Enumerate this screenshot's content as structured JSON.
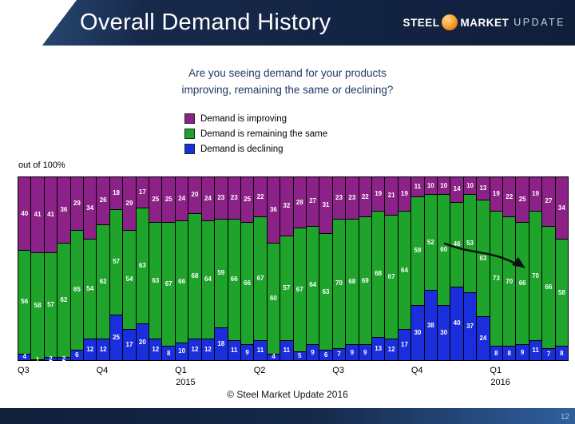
{
  "slide": {
    "title": "Overall Demand History",
    "footer": "© Steel Market Update 2016",
    "slide_number": "12",
    "header_color": "#17294b",
    "background_color": "#ffffff"
  },
  "logo": {
    "steel": "STEEL",
    "market": "MARKET",
    "update": "UPDATE",
    "globe_color": "#f7a22b"
  },
  "question": {
    "line1": "Are you seeing demand for your products",
    "line2": "improving, remaining the same or declining?"
  },
  "axis_note": "out of 100%",
  "annotation": {
    "type": "hand-drawn-arrow",
    "meaning": "downward trend in improving share at far right of chart"
  },
  "chart_data": {
    "type": "bar",
    "subtype": "100-percent-stacked",
    "title": "Overall Demand History",
    "ylabel": "out of 100%",
    "ylim": [
      0,
      100
    ],
    "grid": false,
    "legend_position": "top-center",
    "series": [
      {
        "name": "Demand is improving",
        "key": "improving",
        "color": "#8c2287"
      },
      {
        "name": "Demand is remaining the same",
        "key": "same",
        "color": "#1ea32b"
      },
      {
        "name": "Demand is declining",
        "key": "declining",
        "color": "#1b2edc"
      }
    ],
    "stack_order_top_to_bottom": [
      "improving",
      "same",
      "declining"
    ],
    "quarter_ticks": [
      {
        "label": "Q3",
        "year": "",
        "bar_index": 0
      },
      {
        "label": "Q4",
        "year": "",
        "bar_index": 6
      },
      {
        "label": "Q1",
        "year": "2015",
        "bar_index": 12
      },
      {
        "label": "Q2",
        "year": "",
        "bar_index": 18
      },
      {
        "label": "Q3",
        "year": "",
        "bar_index": 24
      },
      {
        "label": "Q4",
        "year": "",
        "bar_index": 30
      },
      {
        "label": "Q1",
        "year": "2016",
        "bar_index": 36
      }
    ],
    "bars": [
      {
        "improving": 40,
        "same": 56,
        "declining": 4
      },
      {
        "improving": 41,
        "same": 58,
        "declining": 1
      },
      {
        "improving": 41,
        "same": 57,
        "declining": 2
      },
      {
        "improving": 36,
        "same": 62,
        "declining": 2
      },
      {
        "improving": 29,
        "same": 65,
        "declining": 6
      },
      {
        "improving": 34,
        "same": 54,
        "declining": 12
      },
      {
        "improving": 26,
        "same": 62,
        "declining": 12
      },
      {
        "improving": 18,
        "same": 57,
        "declining": 25
      },
      {
        "improving": 29,
        "same": 54,
        "declining": 17
      },
      {
        "improving": 17,
        "same": 63,
        "declining": 20
      },
      {
        "improving": 25,
        "same": 63,
        "declining": 12
      },
      {
        "improving": 25,
        "same": 67,
        "declining": 8
      },
      {
        "improving": 24,
        "same": 66,
        "declining": 10
      },
      {
        "improving": 20,
        "same": 68,
        "declining": 12
      },
      {
        "improving": 24,
        "same": 64,
        "declining": 12
      },
      {
        "improving": 23,
        "same": 59,
        "declining": 18
      },
      {
        "improving": 23,
        "same": 66,
        "declining": 11
      },
      {
        "improving": 25,
        "same": 66,
        "declining": 9
      },
      {
        "improving": 22,
        "same": 67,
        "declining": 11
      },
      {
        "improving": 36,
        "same": 60,
        "declining": 4
      },
      {
        "improving": 32,
        "same": 57,
        "declining": 11
      },
      {
        "improving": 28,
        "same": 67,
        "declining": 5
      },
      {
        "improving": 27,
        "same": 64,
        "declining": 9
      },
      {
        "improving": 31,
        "same": 63,
        "declining": 6
      },
      {
        "improving": 23,
        "same": 70,
        "declining": 7
      },
      {
        "improving": 23,
        "same": 68,
        "declining": 9
      },
      {
        "improving": 22,
        "same": 69,
        "declining": 9
      },
      {
        "improving": 19,
        "same": 68,
        "declining": 13
      },
      {
        "improving": 21,
        "same": 67,
        "declining": 12
      },
      {
        "improving": 19,
        "same": 64,
        "declining": 17
      },
      {
        "improving": 11,
        "same": 59,
        "declining": 30
      },
      {
        "improving": 10,
        "same": 52,
        "declining": 38
      },
      {
        "improving": 10,
        "same": 60,
        "declining": 30
      },
      {
        "improving": 14,
        "same": 46,
        "declining": 40
      },
      {
        "improving": 10,
        "same": 53,
        "declining": 37
      },
      {
        "improving": 13,
        "same": 63,
        "declining": 24
      },
      {
        "improving": 19,
        "same": 73,
        "declining": 8
      },
      {
        "improving": 22,
        "same": 70,
        "declining": 8
      },
      {
        "improving": 25,
        "same": 66,
        "declining": 9
      },
      {
        "improving": 19,
        "same": 70,
        "declining": 11
      },
      {
        "improving": 27,
        "same": 66,
        "declining": 7
      },
      {
        "improving": 34,
        "same": 58,
        "declining": 8
      }
    ]
  }
}
